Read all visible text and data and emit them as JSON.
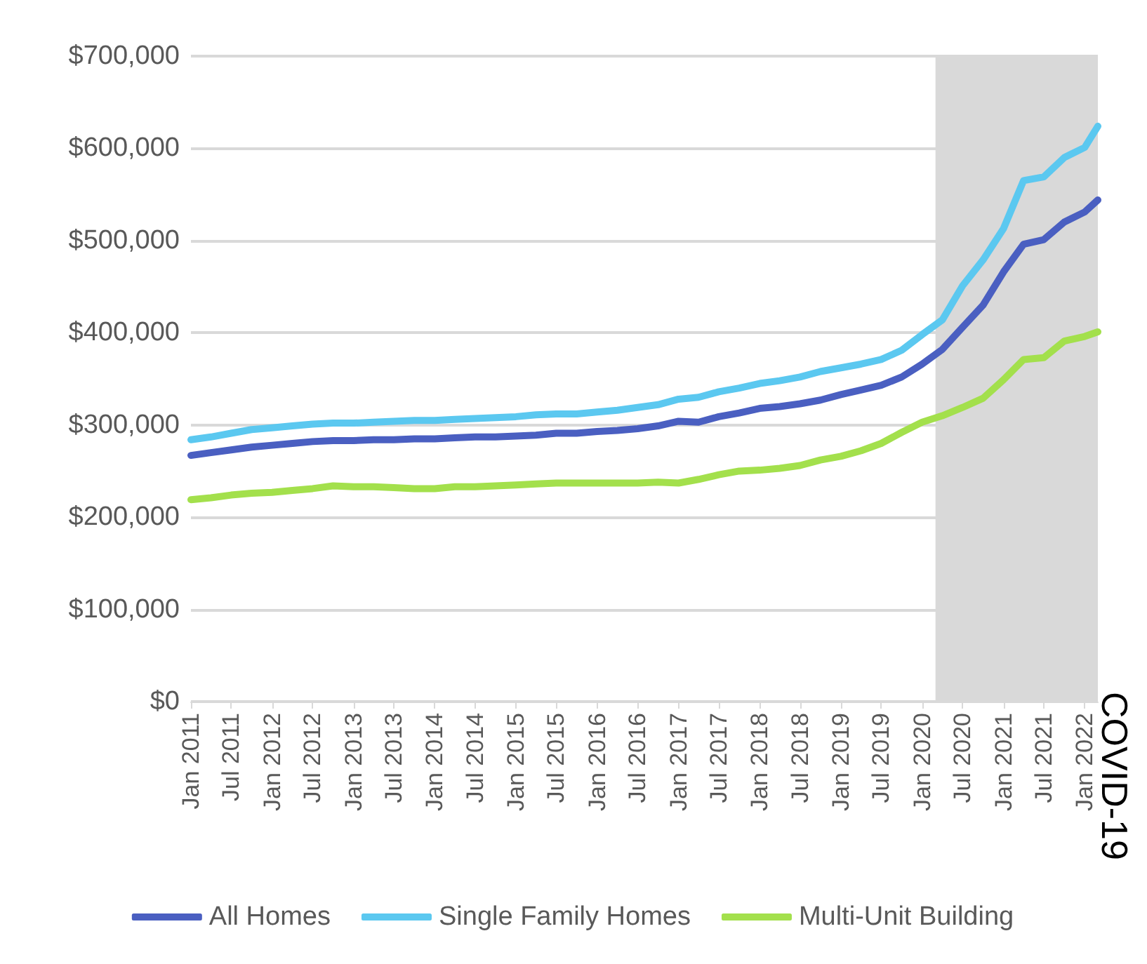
{
  "chart_data": {
    "type": "line",
    "x": [
      "2011-01",
      "2011-04",
      "2011-07",
      "2011-10",
      "2012-01",
      "2012-04",
      "2012-07",
      "2012-10",
      "2013-01",
      "2013-04",
      "2013-07",
      "2013-10",
      "2014-01",
      "2014-04",
      "2014-07",
      "2014-10",
      "2015-01",
      "2015-04",
      "2015-07",
      "2015-10",
      "2016-01",
      "2016-04",
      "2016-07",
      "2016-10",
      "2017-01",
      "2017-04",
      "2017-07",
      "2017-10",
      "2018-01",
      "2018-04",
      "2018-07",
      "2018-10",
      "2019-01",
      "2019-04",
      "2019-07",
      "2019-10",
      "2020-01",
      "2020-04",
      "2020-07",
      "2020-10",
      "2021-01",
      "2021-04",
      "2021-07",
      "2021-10",
      "2022-01",
      "2022-03"
    ],
    "series": [
      {
        "name": "All Homes",
        "color": "#4a5fc1",
        "values": [
          267000,
          270000,
          273000,
          276000,
          278000,
          280000,
          282000,
          283000,
          283000,
          284000,
          284000,
          285000,
          285000,
          286000,
          287000,
          287000,
          288000,
          289000,
          291000,
          291000,
          293000,
          294000,
          296000,
          299000,
          304000,
          303000,
          309000,
          313000,
          318000,
          320000,
          323000,
          327000,
          333000,
          338000,
          343000,
          352000,
          366000,
          382000,
          406000,
          430000,
          466000,
          496000,
          501000,
          520000,
          531000,
          544000
        ]
      },
      {
        "name": "Single Family Homes",
        "color": "#5bc8f0",
        "values": [
          284000,
          287000,
          291000,
          295000,
          297000,
          299000,
          301000,
          302000,
          302000,
          303000,
          304000,
          305000,
          305000,
          306000,
          307000,
          308000,
          309000,
          311000,
          312000,
          312000,
          314000,
          316000,
          319000,
          322000,
          328000,
          330000,
          336000,
          340000,
          345000,
          348000,
          352000,
          358000,
          362000,
          366000,
          371000,
          381000,
          398000,
          414000,
          451000,
          479000,
          513000,
          565000,
          569000,
          590000,
          601000,
          624000
        ]
      },
      {
        "name": "Multi-Unit Building",
        "color": "#a3e04c",
        "values": [
          219000,
          221000,
          224000,
          226000,
          227000,
          229000,
          231000,
          234000,
          233000,
          233000,
          232000,
          231000,
          231000,
          233000,
          233000,
          234000,
          235000,
          236000,
          237000,
          237000,
          237000,
          237000,
          237000,
          238000,
          237000,
          241000,
          246000,
          250000,
          251000,
          253000,
          256000,
          262000,
          266000,
          272000,
          280000,
          292000,
          303000,
          310000,
          319000,
          329000,
          349000,
          371000,
          373000,
          391000,
          396000,
          401000
        ]
      }
    ],
    "xlim": [
      "2011-01",
      "2022-03"
    ],
    "xticks": [
      {
        "value": "2011-01",
        "label": "Jan 2011"
      },
      {
        "value": "2011-07",
        "label": "Jul 2011"
      },
      {
        "value": "2012-01",
        "label": "Jan 2012"
      },
      {
        "value": "2012-07",
        "label": "Jul 2012"
      },
      {
        "value": "2013-01",
        "label": "Jan 2013"
      },
      {
        "value": "2013-07",
        "label": "Jul 2013"
      },
      {
        "value": "2014-01",
        "label": "Jan 2014"
      },
      {
        "value": "2014-07",
        "label": "Jul 2014"
      },
      {
        "value": "2015-01",
        "label": "Jan 2015"
      },
      {
        "value": "2015-07",
        "label": "Jul 2015"
      },
      {
        "value": "2016-01",
        "label": "Jan 2016"
      },
      {
        "value": "2016-07",
        "label": "Jul 2016"
      },
      {
        "value": "2017-01",
        "label": "Jan 2017"
      },
      {
        "value": "2017-07",
        "label": "Jul 2017"
      },
      {
        "value": "2018-01",
        "label": "Jan 2018"
      },
      {
        "value": "2018-07",
        "label": "Jul 2018"
      },
      {
        "value": "2019-01",
        "label": "Jan 2019"
      },
      {
        "value": "2019-07",
        "label": "Jul 2019"
      },
      {
        "value": "2020-01",
        "label": "Jan 2020"
      },
      {
        "value": "2020-07",
        "label": "Jul 2020"
      },
      {
        "value": "2021-01",
        "label": "Jan 2021"
      },
      {
        "value": "2021-07",
        "label": "Jul 2021"
      },
      {
        "value": "2022-01",
        "label": "Jan 2022"
      }
    ],
    "ylim": [
      0,
      700000
    ],
    "yticks": [
      {
        "value": 0,
        "label": "$0"
      },
      {
        "value": 100000,
        "label": "$100,000"
      },
      {
        "value": 200000,
        "label": "$200,000"
      },
      {
        "value": 300000,
        "label": "$300,000"
      },
      {
        "value": 400000,
        "label": "$400,000"
      },
      {
        "value": 500000,
        "label": "$500,000"
      },
      {
        "value": 600000,
        "label": "$600,000"
      },
      {
        "value": 700000,
        "label": "$700,000"
      }
    ],
    "bands": [
      {
        "axis": "x",
        "from": "2020-03",
        "to": "2022-03",
        "label": "COVID-19",
        "color": "#d9d9d9"
      }
    ],
    "grid": "y",
    "legend": "bottom",
    "marker": "none",
    "line_style": "solid"
  }
}
